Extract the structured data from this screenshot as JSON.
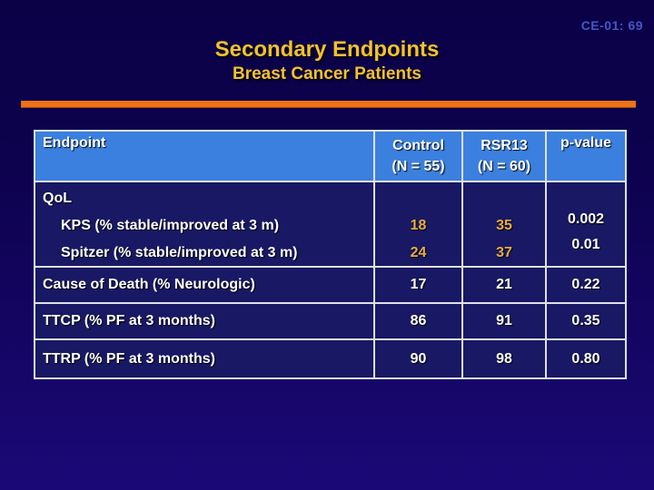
{
  "slide": {
    "code": "CE-01: 69",
    "title": "Secondary Endpoints",
    "subtitle": "Breast Cancer Patients"
  },
  "colors": {
    "background_top": "#0A0147",
    "background_bottom": "#1B0877",
    "accent_rule_orange": "#ED7117",
    "title_gold": "#F3C12F",
    "header_blue": "#3B80DF",
    "table_body_navy": "#181864",
    "highlight_number_gold": "#E8AC40",
    "slide_code_blue": "#4A55C2",
    "table_border": "#DFDFE8"
  },
  "table": {
    "header": {
      "endpoint": "Endpoint",
      "control_line1": "Control",
      "control_line2": "(N = 55)",
      "rsr13_line1": "RSR13",
      "rsr13_line2": "(N = 60)",
      "pvalue": "p-value"
    },
    "qol": {
      "group": "QoL",
      "kps": "KPS (% stable/improved at 3 m)",
      "spitzer": "Spitzer (% stable/improved at 3 m)",
      "control_kps": "18",
      "control_spitzer": "24",
      "rsr13_kps": "35",
      "rsr13_spitzer": "37",
      "p_kps": "0.002",
      "p_spitzer": "0.01"
    },
    "rows": [
      {
        "label": "Cause of Death (% Neurologic)",
        "control": "17",
        "rsr13": "21",
        "p": "0.22"
      },
      {
        "label": "TTCP (% PF at 3 months)",
        "control": "86",
        "rsr13": "91",
        "p": "0.35"
      },
      {
        "label": "TTRP (% PF at 3 months)",
        "control": "90",
        "rsr13": "98",
        "p": "0.80"
      }
    ]
  }
}
